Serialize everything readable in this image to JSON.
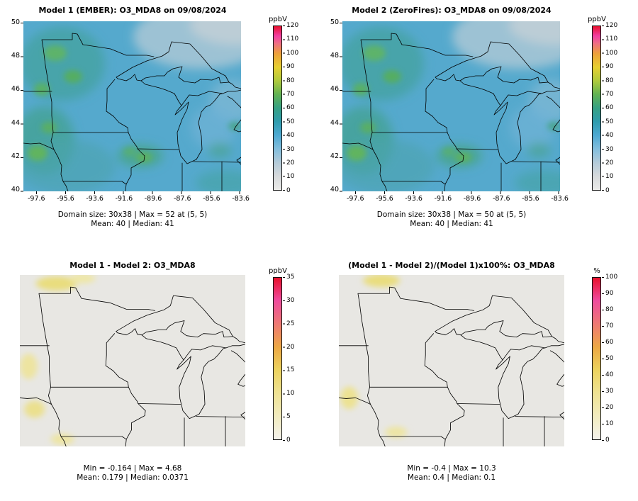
{
  "figure": {
    "background": "#ffffff",
    "description": "2x2 model evaluation spatial plots of O3_MDA8 over the Upper Midwest / Great Lakes region"
  },
  "palette": {
    "concentration_scale": [
      "#ebebe9",
      "#d7dadc",
      "#b4cbd9",
      "#83bedd",
      "#4ea9d2",
      "#2f9cae",
      "#36a184",
      "#62b353",
      "#b0cb3c",
      "#e7d031",
      "#eda03a",
      "#ef6f85",
      "#f13fa3",
      "#e8112d"
    ],
    "difference_scale": [
      "#f4f2ec",
      "#f2ecc0",
      "#efe292",
      "#edd35e",
      "#eda844",
      "#ee7a72",
      "#ef4b9e",
      "#e8112d"
    ],
    "boundary_color": "#000000"
  },
  "chart_data": [
    {
      "panel": "top-left",
      "type": "heatmap",
      "title": "Model 1 (EMBER): O3_MDA8 on 09/08/2024",
      "variable": "O3_MDA8",
      "date": "09/08/2024",
      "x_ticks": [
        "-97.6",
        "-95.6",
        "-93.6",
        "-91.6",
        "-89.6",
        "-87.6",
        "-85.6",
        "-83.6"
      ],
      "y_ticks": [
        "40",
        "42",
        "44",
        "46",
        "48",
        "50"
      ],
      "x_range": [
        -98.5,
        -83.5
      ],
      "y_range": [
        40,
        50.1
      ],
      "grid": false,
      "colorbar": {
        "label": "ppbV",
        "min": 0,
        "max": 120,
        "ticks": [
          "0",
          "10",
          "20",
          "30",
          "40",
          "50",
          "60",
          "70",
          "80",
          "90",
          "100",
          "110",
          "120"
        ]
      },
      "stats_line1": "Domain size: 30x38 | Max = 52 at (5, 5)",
      "stats_line2": "Mean: 40 |  Median: 41",
      "summary": {
        "domain_size": "30x38",
        "max": 52,
        "max_at": "(5, 5)",
        "mean": 40,
        "median": 41
      }
    },
    {
      "panel": "top-right",
      "type": "heatmap",
      "title": "Model 2 (ZeroFires): O3_MDA8 on 09/08/2024",
      "variable": "O3_MDA8",
      "date": "09/08/2024",
      "x_ticks": [
        "-97.6",
        "-95.6",
        "-93.6",
        "-91.6",
        "-89.6",
        "-87.6",
        "-85.6",
        "-83.6"
      ],
      "y_ticks": [
        "40",
        "42",
        "44",
        "46",
        "48",
        "50"
      ],
      "x_range": [
        -98.5,
        -83.5
      ],
      "y_range": [
        40,
        50.1
      ],
      "grid": false,
      "colorbar": {
        "label": "ppbV",
        "min": 0,
        "max": 120,
        "ticks": [
          "0",
          "10",
          "20",
          "30",
          "40",
          "50",
          "60",
          "70",
          "80",
          "90",
          "100",
          "110",
          "120"
        ]
      },
      "stats_line1": "Domain size: 30x38 | Max = 50 at (5, 5)",
      "stats_line2": "Mean: 40 |  Median: 41",
      "summary": {
        "domain_size": "30x38",
        "max": 50,
        "max_at": "(5, 5)",
        "mean": 40,
        "median": 41
      }
    },
    {
      "panel": "bottom-left",
      "type": "heatmap",
      "title": "Model 1 - Model 2: O3_MDA8",
      "variable": "O3_MDA8",
      "colorbar": {
        "label": "ppbV",
        "min": 0,
        "max": 35,
        "ticks": [
          "0",
          "5",
          "10",
          "15",
          "20",
          "25",
          "30",
          "35"
        ]
      },
      "stats_line1": "Min = -0.164 | Max = 4.68",
      "stats_line2": "Mean: 0.179 |  Median: 0.0371",
      "summary": {
        "min": -0.164,
        "max": 4.68,
        "mean": 0.179,
        "median": 0.0371
      }
    },
    {
      "panel": "bottom-right",
      "type": "heatmap",
      "title": "(Model 1 - Model 2)/(Model 1)x100%: O3_MDA8",
      "variable": "O3_MDA8",
      "colorbar": {
        "label": "%",
        "min": 0,
        "max": 100,
        "ticks": [
          "0",
          "10",
          "20",
          "30",
          "40",
          "50",
          "60",
          "70",
          "80",
          "90",
          "100"
        ]
      },
      "stats_line1": "Min = -0.4 | Max = 10.3",
      "stats_line2": "Mean: 0.4 |  Median: 0.1",
      "summary": {
        "min": -0.4,
        "max": 10.3,
        "mean": 0.4,
        "median": 0.1
      }
    }
  ]
}
